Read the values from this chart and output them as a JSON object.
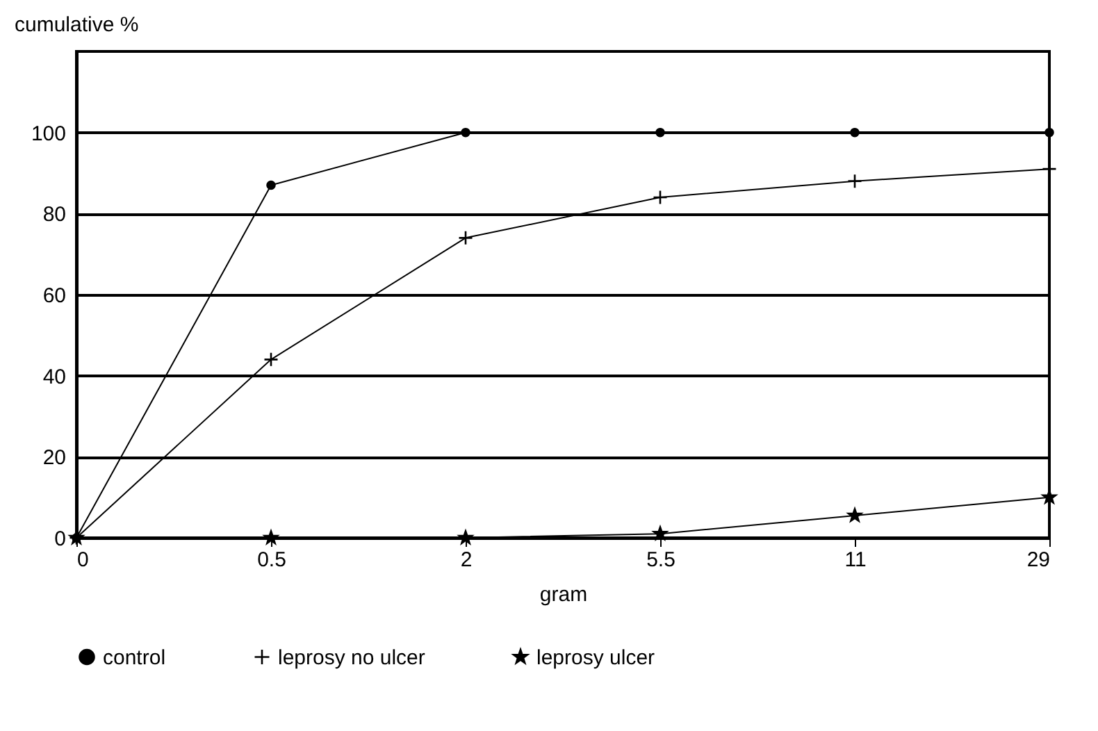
{
  "chart_data": {
    "type": "line",
    "ylabel": "cumulative %",
    "xlabel": "gram",
    "categories": [
      "0",
      "0.5",
      "2",
      "5.5",
      "11",
      "29"
    ],
    "series": [
      {
        "name": "control",
        "color": "#000000",
        "marker": "circle",
        "values": [
          0,
          87,
          100,
          100,
          100,
          100
        ]
      },
      {
        "name": "leprosy no ulcer",
        "color": "#000000",
        "marker": "cross",
        "values": [
          0,
          44,
          74,
          84,
          88,
          91
        ]
      },
      {
        "name": "leprosy ulcer",
        "color": "#000000",
        "marker": "star",
        "values": [
          0,
          0,
          0,
          1,
          5.5,
          10
        ]
      }
    ],
    "ylim": [
      0,
      120
    ],
    "yticks": [
      0,
      20,
      40,
      60,
      80,
      100
    ],
    "grid": "y",
    "legend": "bottom"
  }
}
